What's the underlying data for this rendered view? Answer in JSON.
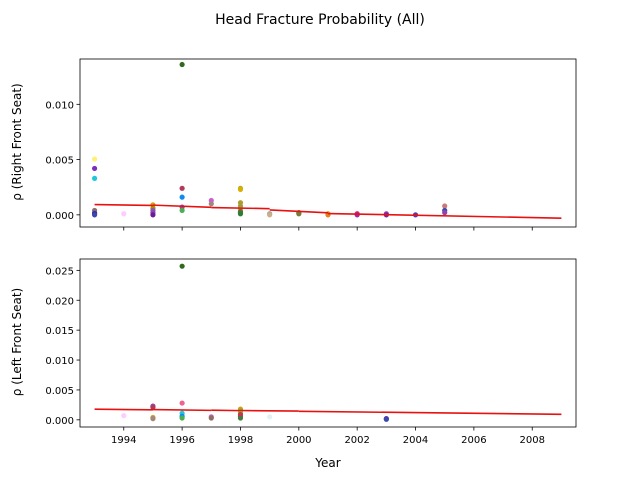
{
  "chart_data": {
    "suptitle": "Head Fracture Probability (All)",
    "xlabel": "Year",
    "x_ticks": [
      "1994",
      "1996",
      "1998",
      "2000",
      "2002",
      "2004",
      "2006",
      "2008"
    ],
    "x_tick_values": [
      1994,
      1996,
      1998,
      2000,
      2002,
      2004,
      2006,
      2008
    ],
    "xlim": [
      1992.5,
      2009.5
    ],
    "panels": [
      {
        "type": "scatter",
        "ylabel": "ρ (Right Front Seat)",
        "ylim": [
          -0.0011,
          0.0141
        ],
        "y_ticks": [
          "0.000",
          "0.005",
          "0.010"
        ],
        "y_tick_values": [
          0,
          0.005,
          0.01
        ],
        "show_x_ticklabels": false,
        "points": [
          {
            "x": 1993,
            "y": 0.00505,
            "color": "#fff176"
          },
          {
            "x": 1993,
            "y": 0.0042,
            "color": "#7b2fbf"
          },
          {
            "x": 1993,
            "y": 0.0033,
            "color": "#26c6da"
          },
          {
            "x": 1993,
            "y": 0.0004,
            "color": "#8d6e63"
          },
          {
            "x": 1993,
            "y": 0.0002,
            "color": "#5c6bc0"
          },
          {
            "x": 1993,
            "y": 0.0001,
            "color": "#4a148c"
          },
          {
            "x": 1993,
            "y": 0.0,
            "color": "#3949ab"
          },
          {
            "x": 1994,
            "y": 0.0001,
            "color": "#ffccff"
          },
          {
            "x": 1995,
            "y": 0.0009,
            "color": "#d4a017"
          },
          {
            "x": 1995,
            "y": 0.0006,
            "color": "#b8860b"
          },
          {
            "x": 1995,
            "y": 0.0004,
            "color": "#7e57c2"
          },
          {
            "x": 1995,
            "y": 0.0002,
            "color": "#8e44ad"
          },
          {
            "x": 1995,
            "y": 0.0,
            "color": "#6a1b9a"
          },
          {
            "x": 1996,
            "y": 0.0136,
            "color": "#33691e"
          },
          {
            "x": 1996,
            "y": 0.0024,
            "color": "#b03a5b"
          },
          {
            "x": 1996,
            "y": 0.0016,
            "color": "#0d8bf2"
          },
          {
            "x": 1996,
            "y": 0.0007,
            "color": "#8e44ad"
          },
          {
            "x": 1996,
            "y": 0.0004,
            "color": "#4caf50"
          },
          {
            "x": 1997,
            "y": 0.0013,
            "color": "#ce5fce"
          },
          {
            "x": 1997,
            "y": 0.001,
            "color": "#a1887f"
          },
          {
            "x": 1998,
            "y": 0.0024,
            "color": "#c8a415"
          },
          {
            "x": 1998,
            "y": 0.0023,
            "color": "#d4b106"
          },
          {
            "x": 1998,
            "y": 0.0011,
            "color": "#b39a2a"
          },
          {
            "x": 1998,
            "y": 0.0008,
            "color": "#9e9e3a"
          },
          {
            "x": 1998,
            "y": 0.0005,
            "color": "#8bc34a"
          },
          {
            "x": 1998,
            "y": 0.0003,
            "color": "#a0522d"
          },
          {
            "x": 1998,
            "y": 0.0002,
            "color": "#3f7f3f"
          },
          {
            "x": 1998,
            "y": 0.0001,
            "color": "#2e7d32"
          },
          {
            "x": 1999,
            "y": 0.0001,
            "color": "#9e9e9e"
          },
          {
            "x": 1999,
            "y": 0.0,
            "color": "#c8b08a"
          },
          {
            "x": 2000,
            "y": 0.0002,
            "color": "#556b2f"
          },
          {
            "x": 2000,
            "y": 0.0001,
            "color": "#7a7a3a"
          },
          {
            "x": 2001,
            "y": 0.0001,
            "color": "#d4a017"
          },
          {
            "x": 2001,
            "y": 0.0,
            "color": "#e67e22"
          },
          {
            "x": 2002,
            "y": 0.0001,
            "color": "#e91e63"
          },
          {
            "x": 2002,
            "y": 0.0,
            "color": "#9c27b0"
          },
          {
            "x": 2003,
            "y": 0.0001,
            "color": "#ab47bc"
          },
          {
            "x": 2003,
            "y": 0.0,
            "color": "#7b1fa2"
          },
          {
            "x": 2004,
            "y": 0.0,
            "color": "#5e35b1"
          },
          {
            "x": 2005,
            "y": 0.0008,
            "color": "#c97b7b"
          },
          {
            "x": 2005,
            "y": 0.0004,
            "color": "#3949ab"
          },
          {
            "x": 2005,
            "y": 0.0002,
            "color": "#8e44ad"
          }
        ],
        "trend_segments": [
          [
            1993,
            0.00093,
            1995,
            0.00085
          ],
          [
            1995,
            0.00088,
            1997,
            0.00068
          ],
          [
            1997,
            0.00066,
            1999,
            0.00056
          ],
          [
            1999,
            0.00044,
            2001,
            0.00018
          ],
          [
            2001,
            0.00012,
            2009,
            -0.0003
          ]
        ]
      },
      {
        "type": "scatter",
        "ylabel": "ρ (Left Front Seat)",
        "ylim": [
          -0.0012,
          0.0269
        ],
        "y_ticks": [
          "0.000",
          "0.005",
          "0.010",
          "0.015",
          "0.020",
          "0.025"
        ],
        "y_tick_values": [
          0,
          0.005,
          0.01,
          0.015,
          0.02,
          0.025
        ],
        "show_x_ticklabels": true,
        "points": [
          {
            "x": 1994,
            "y": 0.0007,
            "color": "#ffccff"
          },
          {
            "x": 1995,
            "y": 0.0023,
            "color": "#8e44ad"
          },
          {
            "x": 1995,
            "y": 0.0021,
            "color": "#b03a5b"
          },
          {
            "x": 1995,
            "y": 0.0004,
            "color": "#d4a017"
          },
          {
            "x": 1995,
            "y": 0.0002,
            "color": "#a1887f"
          },
          {
            "x": 1996,
            "y": 0.0257,
            "color": "#33691e"
          },
          {
            "x": 1996,
            "y": 0.0028,
            "color": "#f06292"
          },
          {
            "x": 1996,
            "y": 0.0011,
            "color": "#26c6da"
          },
          {
            "x": 1996,
            "y": 0.0006,
            "color": "#0d8bf2"
          },
          {
            "x": 1996,
            "y": 0.0003,
            "color": "#4caf50"
          },
          {
            "x": 1997,
            "y": 0.0005,
            "color": "#ce5fce"
          },
          {
            "x": 1997,
            "y": 0.0003,
            "color": "#8d6e63"
          },
          {
            "x": 1998,
            "y": 0.0018,
            "color": "#c8a415"
          },
          {
            "x": 1998,
            "y": 0.0015,
            "color": "#9e9e3a"
          },
          {
            "x": 1998,
            "y": 0.0012,
            "color": "#8bc34a"
          },
          {
            "x": 1998,
            "y": 0.0009,
            "color": "#a0522d"
          },
          {
            "x": 1998,
            "y": 0.0006,
            "color": "#e91e63"
          },
          {
            "x": 1998,
            "y": 0.0003,
            "color": "#3f7f3f"
          },
          {
            "x": 1999,
            "y": 0.0005,
            "color": "#e0f2f1"
          },
          {
            "x": 2003,
            "y": 0.0002,
            "color": "#6a1b9a"
          },
          {
            "x": 2003,
            "y": 0.0001,
            "color": "#3949ab"
          }
        ],
        "trend_segments": [
          [
            1993,
            0.00178,
            1995,
            0.00168
          ],
          [
            1995,
            0.00172,
            1997,
            0.00158
          ],
          [
            1997,
            0.00162,
            1998,
            0.00154
          ],
          [
            1998,
            0.00156,
            2000,
            0.00146
          ],
          [
            2000,
            0.00143,
            2009,
            0.00092
          ]
        ]
      }
    ]
  }
}
